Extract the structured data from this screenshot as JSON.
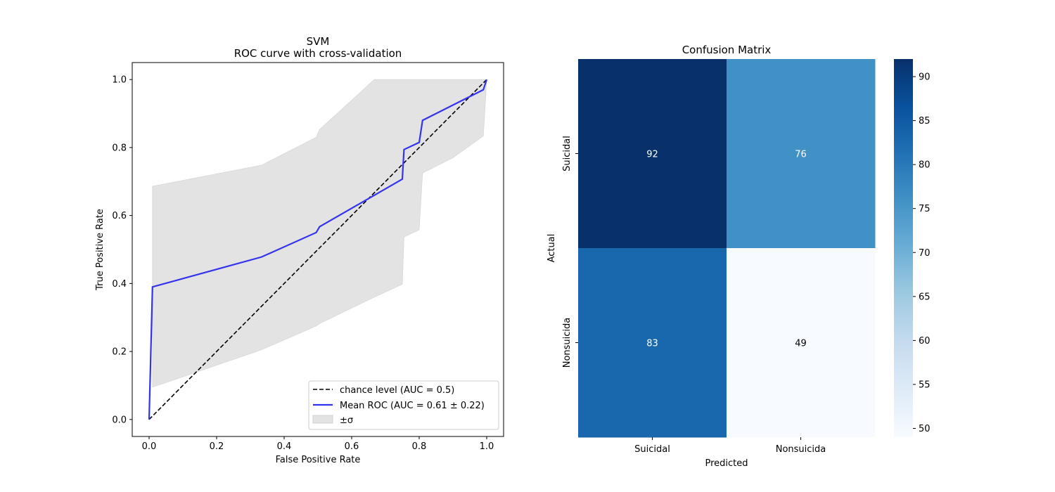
{
  "chart_data": [
    {
      "type": "line",
      "title": "SVM",
      "subtitle": "ROC curve with cross-validation",
      "xlabel": "False Positive Rate",
      "ylabel": "True Positive Rate",
      "xlim": [
        -0.05,
        1.05
      ],
      "ylim": [
        -0.05,
        1.05
      ],
      "xticks": [
        0.0,
        0.2,
        0.4,
        0.6,
        0.8,
        1.0
      ],
      "yticks": [
        0.0,
        0.2,
        0.4,
        0.6,
        0.8,
        1.0
      ],
      "xtick_labels": [
        "0.0",
        "0.2",
        "0.4",
        "0.6",
        "0.8",
        "1.0"
      ],
      "ytick_labels": [
        "0.0",
        "0.2",
        "0.4",
        "0.6",
        "0.8",
        "1.0"
      ],
      "legend_position": "lower-right",
      "series": [
        {
          "name": "chance level (AUC = 0.5)",
          "style": "dashed",
          "color": "#000000",
          "x": [
            0.0,
            1.0
          ],
          "y": [
            0.0,
            1.0
          ]
        },
        {
          "name": "Mean ROC (AUC = 0.61 ± 0.22)",
          "style": "solid",
          "color": "#3333ee",
          "x": [
            0.0,
            0.01,
            0.333,
            0.495,
            0.505,
            0.75,
            0.755,
            0.8,
            0.81,
            0.99,
            1.0
          ],
          "y": [
            0.0,
            0.39,
            0.478,
            0.55,
            0.567,
            0.707,
            0.794,
            0.815,
            0.88,
            0.97,
            1.0
          ]
        }
      ],
      "band": {
        "name": "±σ",
        "color": "#e3e3e3",
        "x_upper": [
          0.01,
          0.333,
          0.495,
          0.505,
          0.667,
          0.75,
          0.8,
          0.9,
          0.99,
          1.0
        ],
        "upper": [
          0.686,
          0.748,
          0.83,
          0.853,
          1.0,
          1.0,
          1.0,
          1.0,
          1.0,
          1.0
        ],
        "x_lower": [
          0.01,
          0.333,
          0.495,
          0.505,
          0.667,
          0.75,
          0.755,
          0.8,
          0.81,
          0.9,
          0.99,
          1.0
        ],
        "lower": [
          0.095,
          0.205,
          0.275,
          0.282,
          0.36,
          0.398,
          0.537,
          0.558,
          0.725,
          0.77,
          0.834,
          1.0
        ]
      }
    },
    {
      "type": "heatmap",
      "title": "Confusion Matrix",
      "xlabel": "Predicted",
      "ylabel": "Actual",
      "x_categories": [
        "Suicidal",
        "Nonsuicida"
      ],
      "y_categories": [
        "Suicidal",
        "Nonsuicida"
      ],
      "values": [
        [
          92,
          76
        ],
        [
          83,
          49
        ]
      ],
      "colormap": "Blues",
      "colorbar": {
        "range": [
          49,
          92
        ],
        "ticks": [
          50,
          55,
          60,
          65,
          70,
          75,
          80,
          85,
          90
        ],
        "tick_labels": [
          "50",
          "55",
          "60",
          "65",
          "70",
          "75",
          "80",
          "85",
          "90"
        ]
      }
    }
  ]
}
